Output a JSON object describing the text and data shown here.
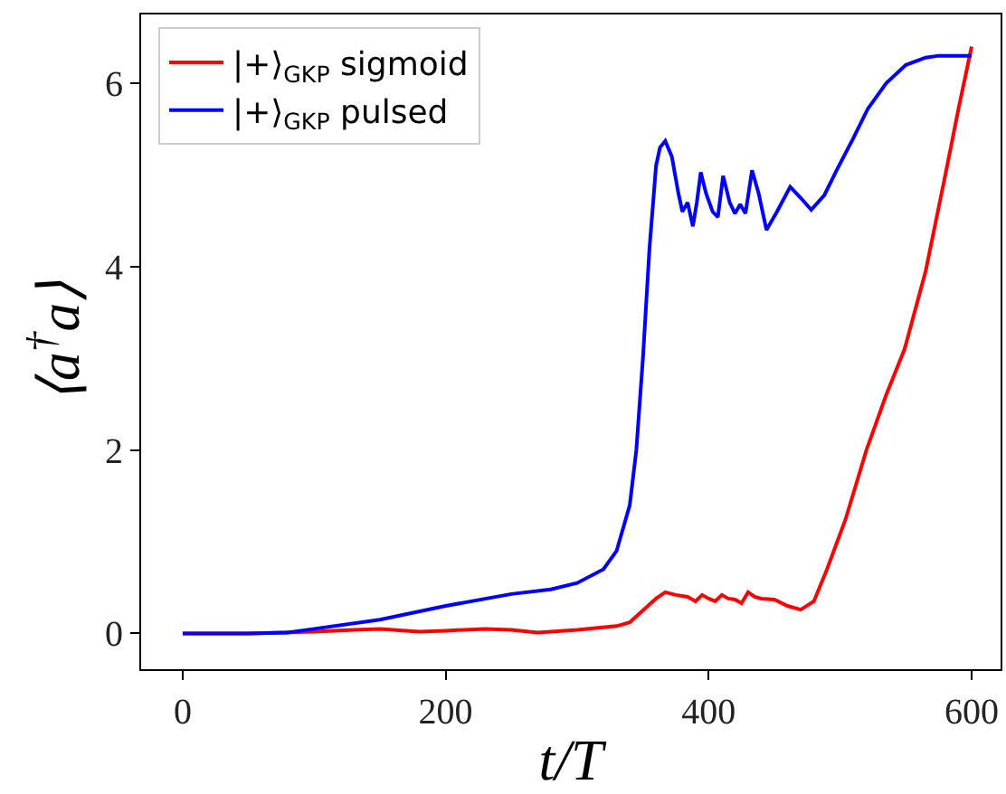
{
  "chart_data": {
    "type": "line",
    "xlabel": "t/T",
    "ylabel": "⟨a$^{†}$a⟩",
    "series": [
      {
        "name": "|+⟩$_{GKP}$ sigmoid",
        "color": "#ff0000",
        "x": [
          0,
          50,
          100,
          130,
          150,
          180,
          200,
          230,
          250,
          270,
          300,
          330,
          340,
          350,
          360,
          367,
          375,
          384,
          390,
          395,
          400,
          405,
          410,
          415,
          420,
          425,
          430,
          435,
          440,
          450,
          460,
          470,
          480,
          490,
          504,
          520,
          535,
          549,
          565,
          580,
          590,
          600
        ],
        "values": [
          0,
          0,
          0.02,
          0.04,
          0.05,
          0.02,
          0.03,
          0.05,
          0.04,
          0.01,
          0.04,
          0.08,
          0.12,
          0.25,
          0.38,
          0.45,
          0.42,
          0.4,
          0.35,
          0.42,
          0.38,
          0.35,
          0.42,
          0.38,
          0.37,
          0.33,
          0.45,
          0.4,
          0.38,
          0.37,
          0.3,
          0.26,
          0.35,
          0.7,
          1.24,
          2.0,
          2.6,
          3.1,
          3.95,
          5.0,
          5.72,
          6.4
        ]
      },
      {
        "name": "|+⟩$_{GKP}$ pulsed",
        "color": "#0000ff",
        "x": [
          0,
          50,
          80,
          100,
          150,
          200,
          250,
          280,
          300,
          320,
          330,
          340,
          345,
          350,
          355,
          360,
          363,
          367,
          372,
          377,
          380,
          384,
          388,
          391,
          394,
          398,
          403,
          407,
          411,
          416,
          420,
          424,
          428,
          433,
          438,
          444,
          452,
          462,
          470,
          478,
          488,
          498,
          510,
          521,
          535,
          550,
          565,
          575,
          590,
          600
        ],
        "values": [
          0,
          0,
          0.01,
          0.05,
          0.15,
          0.3,
          0.43,
          0.48,
          0.55,
          0.7,
          0.9,
          1.4,
          2.0,
          3.0,
          4.2,
          5.1,
          5.3,
          5.37,
          5.2,
          4.8,
          4.6,
          4.7,
          4.44,
          4.7,
          5.03,
          4.8,
          4.6,
          4.54,
          4.99,
          4.7,
          4.58,
          4.68,
          4.58,
          5.05,
          4.8,
          4.4,
          4.6,
          4.87,
          4.75,
          4.62,
          4.78,
          5.07,
          5.4,
          5.72,
          6.0,
          6.2,
          6.28,
          6.3,
          6.3,
          6.3
        ]
      }
    ],
    "xlim": [
      -31.6,
      622
    ],
    "ylim": [
      -0.39,
      6.75
    ],
    "xticks": [
      0,
      200,
      400,
      600
    ],
    "yticks": [
      0,
      2,
      4,
      6
    ],
    "grid": false,
    "legend": "top left",
    "line_style": "solid",
    "marker": "none"
  }
}
